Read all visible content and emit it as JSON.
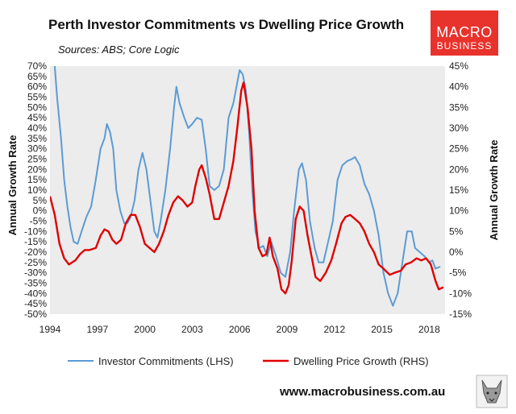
{
  "chart_data": {
    "type": "line",
    "title": "Perth Investor Commitments vs Dwelling Price Growth",
    "subtitle": "Sources: ABS; Core Logic",
    "ylabel_left": "Annual Growth Rate",
    "ylabel_right": "Annual Growth Rate",
    "ylim_left": [
      -50,
      70
    ],
    "ylim_right": [
      -15,
      45
    ],
    "xlim": [
      1994,
      2019
    ],
    "x_ticks": [
      1994,
      1997,
      2000,
      2003,
      2006,
      2009,
      2012,
      2015,
      2018
    ],
    "x_tick_labels": [
      "1994",
      "1997",
      "2000",
      "2003",
      "2006",
      "2009",
      "2012",
      "2015",
      "2018"
    ],
    "y_ticks_left": [
      70,
      65,
      60,
      55,
      50,
      45,
      40,
      35,
      30,
      25,
      20,
      15,
      10,
      5,
      0,
      -5,
      -10,
      -15,
      -20,
      -25,
      -30,
      -35,
      -40,
      -45,
      -50
    ],
    "y_tick_labels_left": [
      "70%",
      "65%",
      "60%",
      "55%",
      "50%",
      "45%",
      "40%",
      "35%",
      "30%",
      "25%",
      "20%",
      "15%",
      "10%",
      "5%",
      "0%",
      "-5%",
      "-10%",
      "-15%",
      "-20%",
      "-25%",
      "-30%",
      "-35%",
      "-40%",
      "-45%",
      "-50%"
    ],
    "y_ticks_right": [
      45,
      40,
      35,
      30,
      25,
      20,
      15,
      10,
      5,
      0,
      -5,
      -10,
      -15
    ],
    "y_tick_labels_right": [
      "45%",
      "40%",
      "35%",
      "30%",
      "25%",
      "20%",
      "15%",
      "10%",
      "5%",
      "0%",
      "-5%",
      "-10%",
      "-15%"
    ],
    "grid": false,
    "legend_position": "bottom",
    "series": [
      {
        "name": "Investor Commitments (LHS)",
        "axis": "left",
        "color": "#5b9bd5",
        "points": [
          [
            1994.3,
            70
          ],
          [
            1994.45,
            55
          ],
          [
            1994.7,
            35
          ],
          [
            1994.9,
            15
          ],
          [
            1995.1,
            2
          ],
          [
            1995.3,
            -8
          ],
          [
            1995.5,
            -15
          ],
          [
            1995.75,
            -16
          ],
          [
            1996.0,
            -10
          ],
          [
            1996.3,
            -3
          ],
          [
            1996.6,
            2
          ],
          [
            1996.9,
            15
          ],
          [
            1997.2,
            30
          ],
          [
            1997.45,
            35
          ],
          [
            1997.6,
            42
          ],
          [
            1997.8,
            38
          ],
          [
            1998.0,
            30
          ],
          [
            1998.2,
            10
          ],
          [
            1998.45,
            0
          ],
          [
            1998.7,
            -6
          ],
          [
            1998.9,
            -6
          ],
          [
            1999.1,
            -3
          ],
          [
            1999.35,
            5
          ],
          [
            1999.6,
            20
          ],
          [
            1999.85,
            28
          ],
          [
            2000.1,
            20
          ],
          [
            2000.35,
            5
          ],
          [
            2000.6,
            -10
          ],
          [
            2000.8,
            -13
          ],
          [
            2001.0,
            -5
          ],
          [
            2001.3,
            10
          ],
          [
            2001.6,
            30
          ],
          [
            2001.85,
            50
          ],
          [
            2002.0,
            60
          ],
          [
            2002.2,
            52
          ],
          [
            2002.5,
            45
          ],
          [
            2002.75,
            40
          ],
          [
            2003.0,
            42
          ],
          [
            2003.3,
            45
          ],
          [
            2003.6,
            44
          ],
          [
            2003.85,
            30
          ],
          [
            2004.1,
            12
          ],
          [
            2004.4,
            10
          ],
          [
            2004.7,
            12
          ],
          [
            2005.0,
            20
          ],
          [
            2005.3,
            45
          ],
          [
            2005.6,
            52
          ],
          [
            2005.85,
            62
          ],
          [
            2006.0,
            68
          ],
          [
            2006.2,
            66
          ],
          [
            2006.4,
            58
          ],
          [
            2006.6,
            38
          ],
          [
            2006.8,
            10
          ],
          [
            2007.0,
            -10
          ],
          [
            2007.25,
            -18
          ],
          [
            2007.5,
            -17
          ],
          [
            2007.75,
            -22
          ],
          [
            2008.0,
            -15
          ],
          [
            2008.3,
            -22
          ],
          [
            2008.6,
            -30
          ],
          [
            2008.9,
            -32
          ],
          [
            2009.2,
            -20
          ],
          [
            2009.45,
            0
          ],
          [
            2009.75,
            20
          ],
          [
            2009.95,
            23
          ],
          [
            2010.2,
            15
          ],
          [
            2010.45,
            -5
          ],
          [
            2010.75,
            -18
          ],
          [
            2011.0,
            -25
          ],
          [
            2011.3,
            -25
          ],
          [
            2011.6,
            -15
          ],
          [
            2011.9,
            -5
          ],
          [
            2012.2,
            15
          ],
          [
            2012.5,
            22
          ],
          [
            2012.8,
            24
          ],
          [
            2013.1,
            25
          ],
          [
            2013.3,
            26
          ],
          [
            2013.6,
            22
          ],
          [
            2013.9,
            13
          ],
          [
            2014.2,
            8
          ],
          [
            2014.5,
            0
          ],
          [
            2014.8,
            -12
          ],
          [
            2015.1,
            -30
          ],
          [
            2015.4,
            -40
          ],
          [
            2015.7,
            -46
          ],
          [
            2016.0,
            -40
          ],
          [
            2016.3,
            -25
          ],
          [
            2016.6,
            -10
          ],
          [
            2016.9,
            -10
          ],
          [
            2017.1,
            -18
          ],
          [
            2017.4,
            -20
          ],
          [
            2017.7,
            -22
          ],
          [
            2018.0,
            -25
          ],
          [
            2018.2,
            -24
          ],
          [
            2018.4,
            -28
          ],
          [
            2018.7,
            -27
          ]
        ]
      },
      {
        "name": "Dwelling Price Growth (RHS)",
        "axis": "right",
        "color": "#e00000",
        "points": [
          [
            1994.0,
            13.5
          ],
          [
            1994.3,
            9
          ],
          [
            1994.6,
            2
          ],
          [
            1994.9,
            -1.5
          ],
          [
            1995.2,
            -3
          ],
          [
            1995.6,
            -2
          ],
          [
            1995.9,
            -0.5
          ],
          [
            1996.2,
            0.5
          ],
          [
            1996.5,
            0.5
          ],
          [
            1996.9,
            1
          ],
          [
            1997.2,
            4
          ],
          [
            1997.45,
            5.5
          ],
          [
            1997.7,
            5
          ],
          [
            1997.95,
            3
          ],
          [
            1998.2,
            2
          ],
          [
            1998.5,
            3
          ],
          [
            1998.8,
            7
          ],
          [
            1999.1,
            9
          ],
          [
            1999.4,
            9
          ],
          [
            1999.7,
            6
          ],
          [
            2000.0,
            2
          ],
          [
            2000.3,
            1
          ],
          [
            2000.6,
            0
          ],
          [
            2000.9,
            2
          ],
          [
            2001.2,
            5
          ],
          [
            2001.5,
            9
          ],
          [
            2001.8,
            12
          ],
          [
            2002.1,
            13.5
          ],
          [
            2002.4,
            12.5
          ],
          [
            2002.7,
            11
          ],
          [
            2003.0,
            12
          ],
          [
            2003.2,
            16
          ],
          [
            2003.45,
            20
          ],
          [
            2003.6,
            21
          ],
          [
            2003.85,
            18
          ],
          [
            2004.1,
            14
          ],
          [
            2004.4,
            8
          ],
          [
            2004.7,
            8
          ],
          [
            2005.0,
            12
          ],
          [
            2005.3,
            16
          ],
          [
            2005.6,
            22
          ],
          [
            2005.85,
            30
          ],
          [
            2006.1,
            39
          ],
          [
            2006.25,
            41
          ],
          [
            2006.5,
            35
          ],
          [
            2006.75,
            25
          ],
          [
            2006.95,
            10
          ],
          [
            2007.2,
            1
          ],
          [
            2007.45,
            -1
          ],
          [
            2007.7,
            -0.5
          ],
          [
            2007.9,
            3.5
          ],
          [
            2008.1,
            -1
          ],
          [
            2008.4,
            -4
          ],
          [
            2008.65,
            -9
          ],
          [
            2008.9,
            -10
          ],
          [
            2009.1,
            -8
          ],
          [
            2009.3,
            -2
          ],
          [
            2009.55,
            8
          ],
          [
            2009.8,
            11
          ],
          [
            2010.05,
            10
          ],
          [
            2010.3,
            4
          ],
          [
            2010.55,
            -1
          ],
          [
            2010.8,
            -6
          ],
          [
            2011.1,
            -7
          ],
          [
            2011.45,
            -5
          ],
          [
            2011.8,
            -2
          ],
          [
            2012.1,
            2
          ],
          [
            2012.45,
            7
          ],
          [
            2012.7,
            8.5
          ],
          [
            2013.0,
            9
          ],
          [
            2013.3,
            8
          ],
          [
            2013.6,
            7
          ],
          [
            2013.9,
            5
          ],
          [
            2014.2,
            2
          ],
          [
            2014.5,
            0
          ],
          [
            2014.8,
            -3
          ],
          [
            2015.1,
            -4
          ],
          [
            2015.5,
            -5.5
          ],
          [
            2015.8,
            -5
          ],
          [
            2016.2,
            -4.5
          ],
          [
            2016.5,
            -3
          ],
          [
            2016.85,
            -2.5
          ],
          [
            2017.2,
            -1.5
          ],
          [
            2017.5,
            -2
          ],
          [
            2017.8,
            -1.5
          ],
          [
            2018.1,
            -3
          ],
          [
            2018.4,
            -7
          ],
          [
            2018.6,
            -9
          ],
          [
            2018.9,
            -8.5
          ]
        ]
      }
    ]
  },
  "logo": {
    "line1": "MACRO",
    "line2": "BUSINESS"
  },
  "footer": {
    "url": "www.macrobusiness.com.au"
  },
  "colors": {
    "logo_bg": "#e8322c"
  }
}
